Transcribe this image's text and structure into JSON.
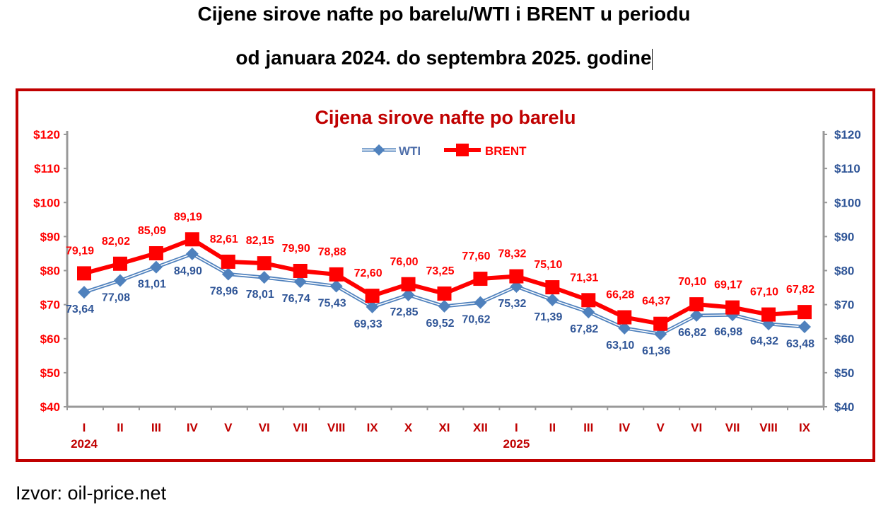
{
  "document": {
    "title_line1": "Cijene sirove nafte po barelu/WTI i BRENT u periodu",
    "title_line2": "od januara 2024. do septembra 2025. godine",
    "source": "Izvor: oil-price.net"
  },
  "chart_data": {
    "type": "line",
    "title": "Cijena sirove nafte po barelu",
    "categories": [
      "I",
      "II",
      "III",
      "IV",
      "V",
      "VI",
      "VII",
      "VIII",
      "IX",
      "X",
      "XI",
      "XII",
      "I",
      "II",
      "III",
      "IV",
      "V",
      "VI",
      "VII",
      "VIII",
      "IX"
    ],
    "year_labels": [
      {
        "index": 0,
        "label": "2024"
      },
      {
        "index": 12,
        "label": "2025"
      }
    ],
    "ylim": [
      40,
      120
    ],
    "yticks": [
      40,
      50,
      60,
      70,
      80,
      90,
      100,
      110,
      120
    ],
    "ytick_prefix": "$",
    "legend_position": "top-center",
    "grid": false,
    "series": [
      {
        "name": "WTI",
        "color": "#4f81bd",
        "label_color": "#2f5597",
        "marker": "diamond",
        "values": [
          73.64,
          77.08,
          81.01,
          84.9,
          78.96,
          78.01,
          76.74,
          75.43,
          69.33,
          72.85,
          69.52,
          70.62,
          75.32,
          71.39,
          67.82,
          63.1,
          61.36,
          66.82,
          66.98,
          64.32,
          63.48
        ]
      },
      {
        "name": "BRENT",
        "color": "#ff0000",
        "label_color": "#ff0000",
        "marker": "square",
        "values": [
          79.19,
          82.02,
          85.09,
          89.19,
          82.61,
          82.15,
          79.9,
          78.88,
          72.6,
          76.0,
          73.25,
          77.6,
          78.32,
          75.1,
          71.31,
          66.28,
          64.37,
          70.1,
          69.17,
          67.1,
          67.82
        ]
      }
    ],
    "colors": {
      "frame": "#c00000",
      "title": "#c00000",
      "left_axis": "#ff0000",
      "right_axis": "#2f5597"
    }
  }
}
